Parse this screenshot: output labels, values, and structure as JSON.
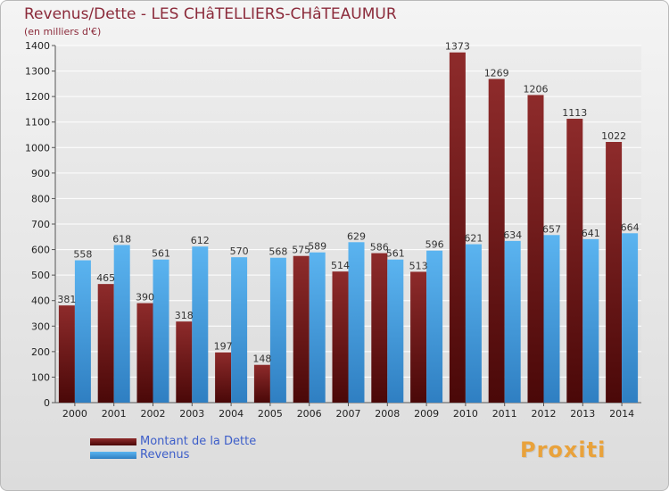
{
  "title": "Revenus/Dette - LES CHâTELLIERS-CHâTEAUMUR",
  "subtitle": "(en milliers d'€)",
  "logo_text": "Proxiti",
  "colors": {
    "dette": "#7a1d1d",
    "revenus": "#4ea5e4"
  },
  "chart_data": {
    "type": "bar",
    "title": "Revenus/Dette - LES CHâTELLIERS-CHâTEAUMUR",
    "subtitle": "(en milliers d'€)",
    "categories": [
      "2000",
      "2001",
      "2002",
      "2003",
      "2004",
      "2005",
      "2006",
      "2007",
      "2008",
      "2009",
      "2010",
      "2011",
      "2012",
      "2013",
      "2014"
    ],
    "series": [
      {
        "name": "Montant de la Dette",
        "values": [
          381,
          465,
          390,
          318,
          197,
          148,
          575,
          514,
          586,
          513,
          1373,
          1269,
          1206,
          1113,
          1022
        ]
      },
      {
        "name": "Revenus",
        "values": [
          558,
          618,
          561,
          612,
          570,
          568,
          589,
          629,
          561,
          596,
          621,
          634,
          657,
          641,
          664
        ]
      }
    ],
    "ylim": [
      0,
      1400
    ],
    "yticks": [
      0,
      100,
      200,
      300,
      400,
      500,
      600,
      700,
      800,
      900,
      1000,
      1100,
      1200,
      1300,
      1400
    ],
    "grid": true,
    "legend": "bottom-left"
  }
}
